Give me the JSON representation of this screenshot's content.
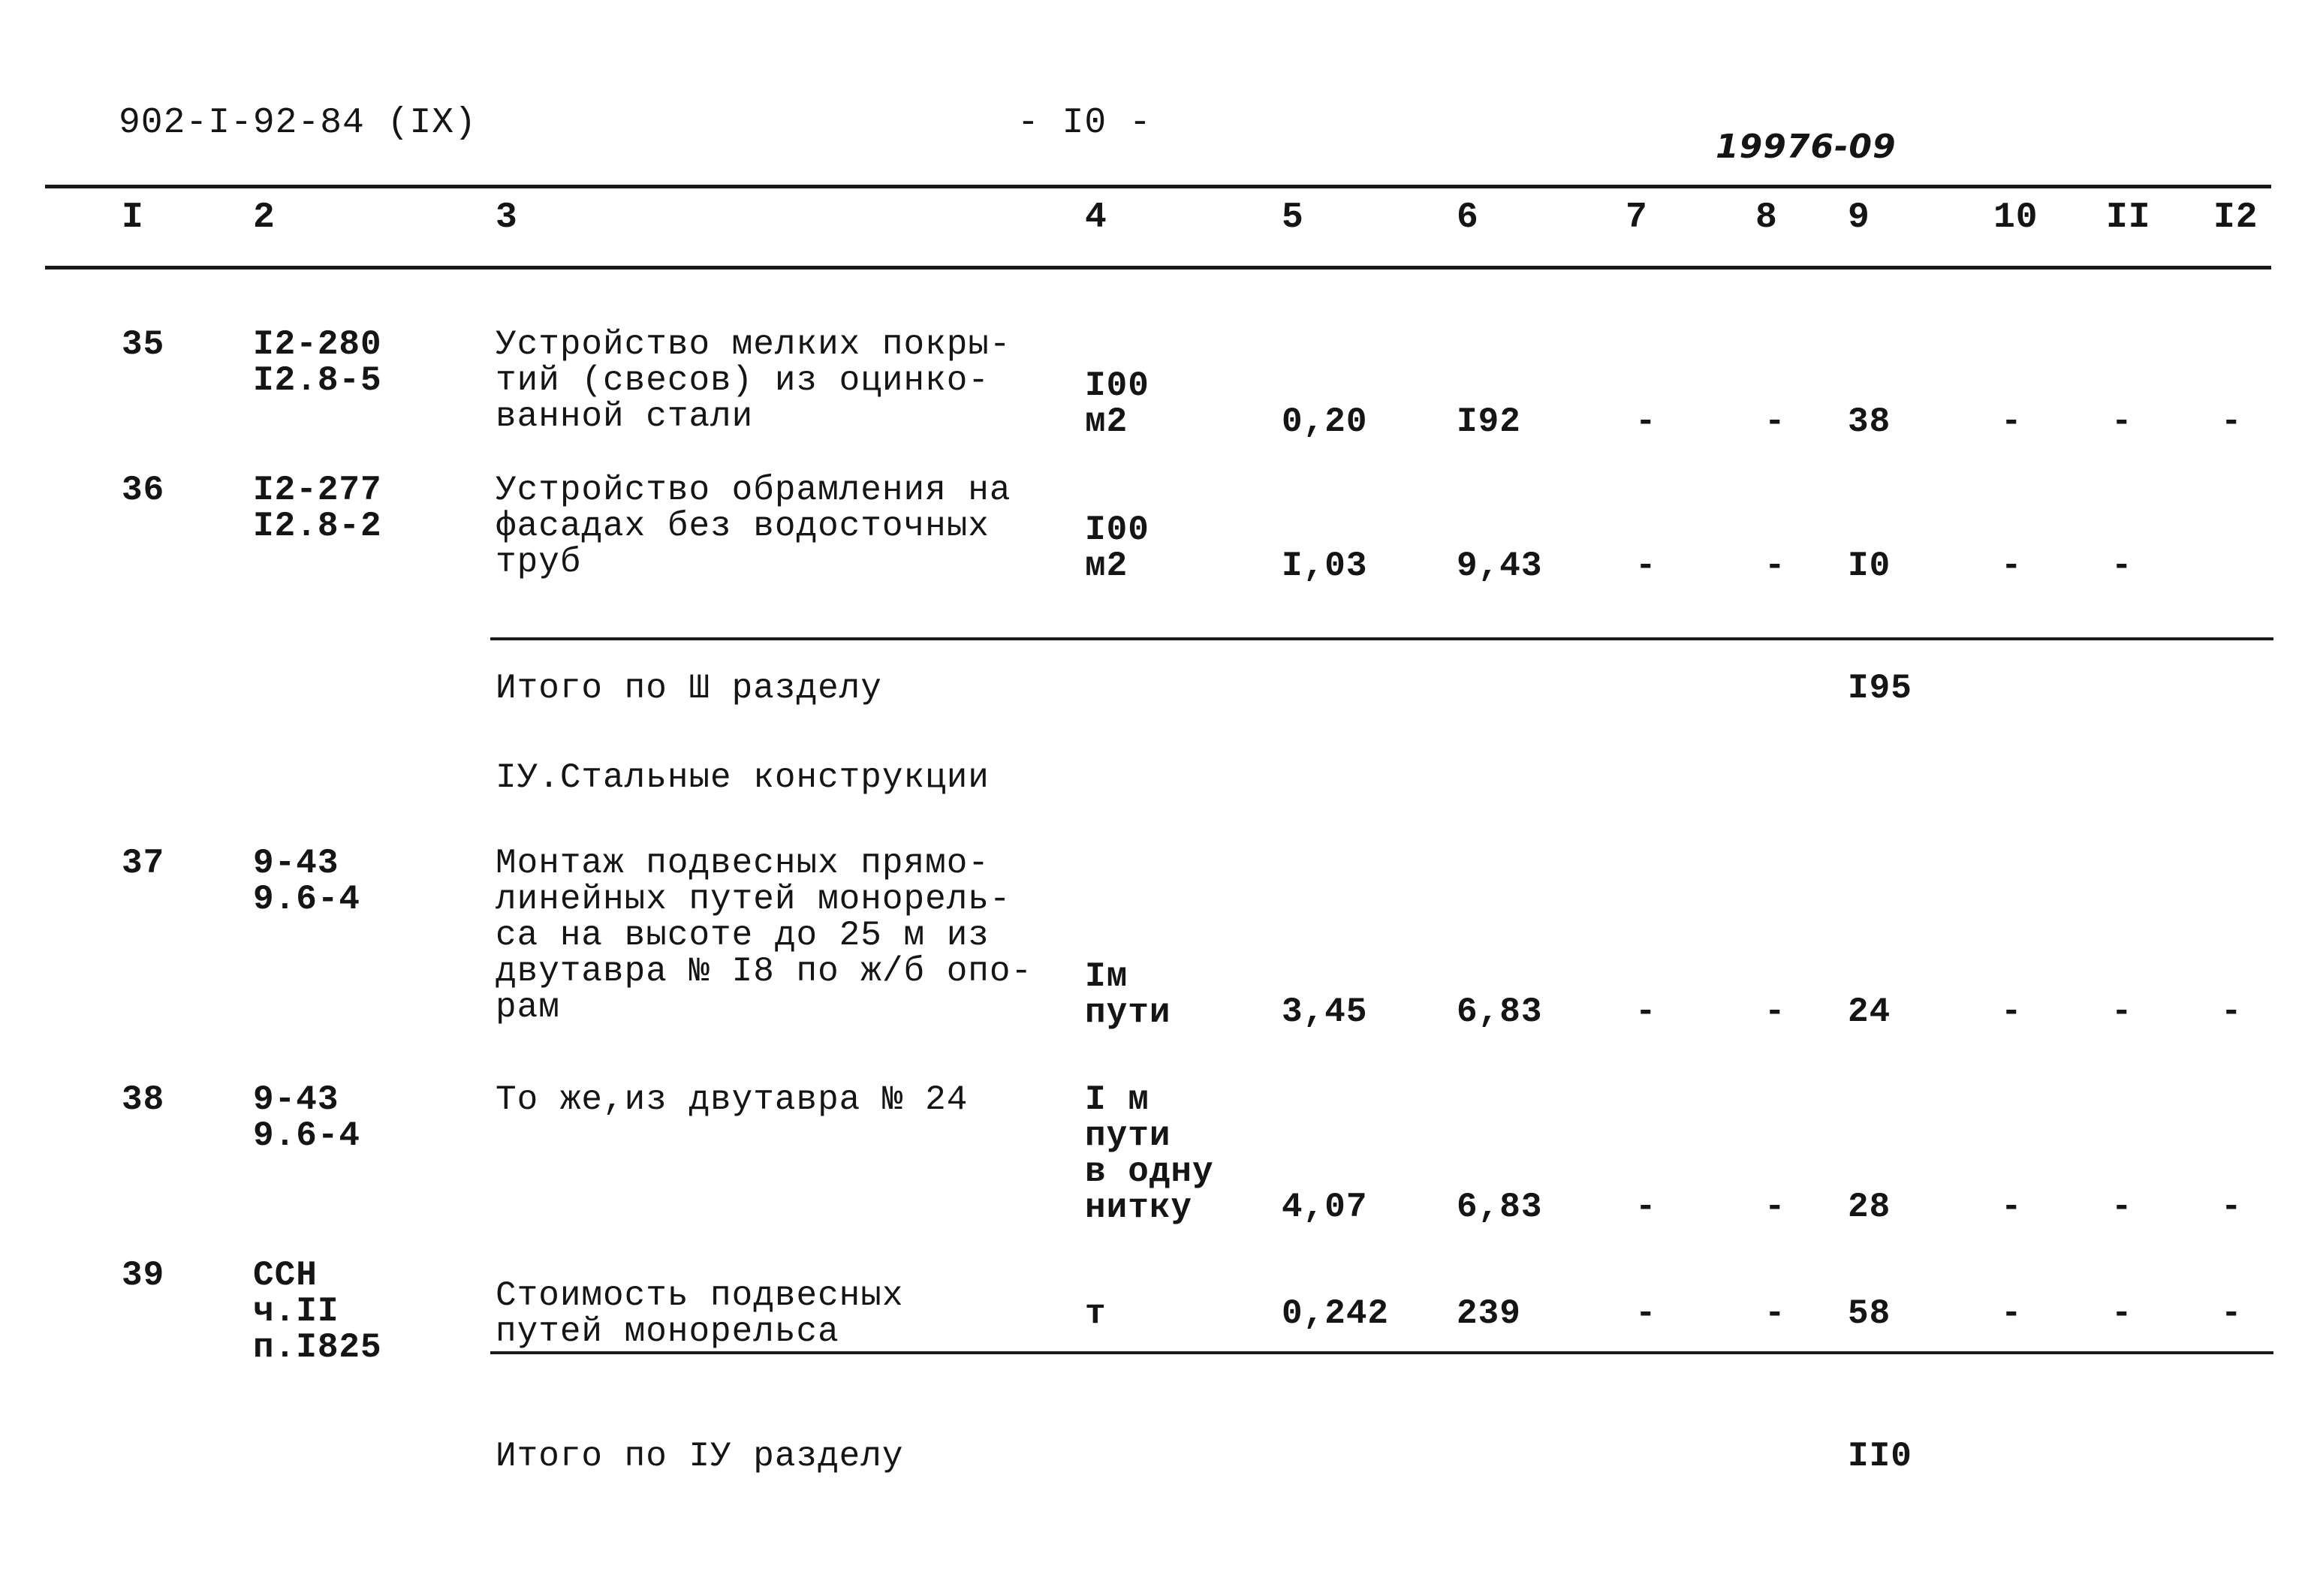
{
  "header": {
    "doc_code": "902-I-92-84 (IX)",
    "page_number": "- I0 -",
    "stamp": "19976-09"
  },
  "columns": [
    "I",
    "2",
    "3",
    "4",
    "5",
    "6",
    "7",
    "8",
    "9",
    "10",
    "II",
    "I2"
  ],
  "rows": [
    {
      "num": "35",
      "code": "I2-280\nI2.8-5",
      "desc": "Устройство мелких покры-\nтий (свесов) из оцинко-\nванной стали",
      "unit": "I00\nм2",
      "c5": "0,20",
      "c6": "I92",
      "c7": "-",
      "c8": "-",
      "c9": "38",
      "c10": "-",
      "c11": "-",
      "c12": "-"
    },
    {
      "num": "36",
      "code": "I2-277\nI2.8-2",
      "desc": "Устройство обрамления на\nфасадах без водосточных\nтруб",
      "unit": "I00\nм2",
      "c5": "I,03",
      "c6": "9,43",
      "c7": "-",
      "c8": "-",
      "c9": "I0",
      "c10": "-",
      "c11": "-",
      "c12": ""
    },
    {
      "num": "37",
      "code": "9-43\n9.6-4",
      "desc": "Монтаж подвесных прямо-\nлинейных путей монорель-\nса на высоте до 25 м из\nдвутавра № I8 по ж/б опо-\nрам",
      "unit": "Iм\nпути",
      "c5": "3,45",
      "c6": "6,83",
      "c7": "-",
      "c8": "-",
      "c9": "24",
      "c10": "-",
      "c11": "-",
      "c12": "-"
    },
    {
      "num": "38",
      "code": "9-43\n9.6-4",
      "desc": "То же,из двутавра № 24",
      "unit": "I м\nпути\nв одну\nнитку",
      "c5": "4,07",
      "c6": "6,83",
      "c7": "-",
      "c8": "-",
      "c9": "28",
      "c10": "-",
      "c11": "-",
      "c12": "-"
    },
    {
      "num": "39",
      "code": "ССН\nч.II\nп.I825",
      "desc": "Стоимость подвесных\nпутей монорельса",
      "unit": "т",
      "c5": "0,242",
      "c6": "239",
      "c7": "-",
      "c8": "-",
      "c9": "58",
      "c10": "-",
      "c11": "-",
      "c12": "-"
    }
  ],
  "subtotals": {
    "section3_label": "Итого по Ш разделу",
    "section3_value": "I95",
    "section4_title": "IУ.Стальные конструкции",
    "section4_label": "Итого по IУ разделу",
    "section4_value": "II0"
  }
}
